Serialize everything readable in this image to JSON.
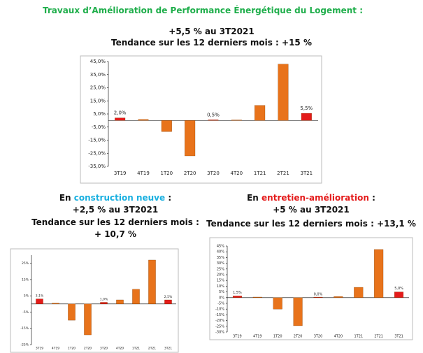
{
  "header": {
    "title": "Travaux d’Amélioration de Performance Énergétique du Logement :",
    "line1": "+5,5 % au 3T2021",
    "line2": "Tendance sur les 12 derniers mois : +15 %"
  },
  "left": {
    "heading": [
      "En ",
      "construction neuve",
      " :"
    ],
    "lines": [
      "+2,5 % au 3T2021",
      "Tendance sur les 12 derniers mois :",
      "+ 10,7 %"
    ]
  },
  "right": {
    "heading": [
      "En ",
      "entretien-amélioration",
      " :"
    ],
    "lines": [
      "+5 % au 3T2021",
      "Tendance sur les 12 derniers mois : +13,1 %"
    ]
  },
  "chart_data": [
    {
      "type": "bar",
      "categories": [
        "3T19",
        "4T19",
        "1T20",
        "2T20",
        "3T20",
        "4T20",
        "1T21",
        "2T21",
        "3T21"
      ],
      "values": [
        2.0,
        0.8,
        -8.5,
        -27,
        0.5,
        0.3,
        11.5,
        43,
        5.5
      ],
      "value_labels": [
        "2,0%",
        null,
        null,
        null,
        "0,5%",
        null,
        null,
        null,
        "5,5%"
      ],
      "colors": [
        "#e41b1b",
        "#e8731b",
        "#e8731b",
        "#e8731b",
        "#e41b1b",
        "#e8731b",
        "#e8731b",
        "#e8731b",
        "#e41b1b"
      ],
      "ylim": [
        -35,
        45
      ],
      "grid": false,
      "yticks": [
        {
          "value": 45,
          "label": "45,0%"
        },
        {
          "value": 35,
          "label": "35,0%"
        },
        {
          "value": 25,
          "label": "25,0%"
        },
        {
          "value": 15,
          "label": "15,0%"
        },
        {
          "value": 5,
          "label": "5,0%"
        },
        {
          "value": -5,
          "label": "-5,0%"
        },
        {
          "value": -15,
          "label": "-15,0%"
        },
        {
          "value": -25,
          "label": "-25,0%"
        },
        {
          "value": -35,
          "label": "-35,0%"
        }
      ]
    },
    {
      "type": "bar",
      "categories": [
        "3T19",
        "4T19",
        "1T20",
        "2T20",
        "3T20",
        "4T20",
        "1T21",
        "2T21",
        "3T21"
      ],
      "values": [
        3.1,
        0.5,
        -10,
        -19,
        1.0,
        2.5,
        9,
        27,
        2.5
      ],
      "value_labels": [
        "3,1%",
        null,
        null,
        null,
        "1,0%",
        null,
        null,
        null,
        "2,5%"
      ],
      "colors": [
        "#e41b1b",
        "#e8731b",
        "#e8731b",
        "#e8731b",
        "#e41b1b",
        "#e8731b",
        "#e8731b",
        "#e8731b",
        "#e41b1b"
      ],
      "ylim": [
        -25,
        30
      ],
      "grid": false,
      "yticks": [
        {
          "value": 25,
          "label": "25%"
        },
        {
          "value": 15,
          "label": "15%"
        },
        {
          "value": 5,
          "label": "5%"
        },
        {
          "value": -5,
          "label": "-5%"
        },
        {
          "value": -15,
          "label": "-15%"
        },
        {
          "value": -25,
          "label": "-25%"
        }
      ]
    },
    {
      "type": "bar",
      "categories": [
        "3T19",
        "4T19",
        "1T20",
        "2T20",
        "3T20",
        "4T20",
        "1T21",
        "2T21",
        "3T21"
      ],
      "values": [
        1.5,
        0.5,
        -10,
        -24.5,
        0.0,
        1.0,
        9,
        42,
        5.0
      ],
      "value_labels": [
        "1,5%",
        null,
        null,
        null,
        "0,0%",
        null,
        null,
        null,
        "5,0%"
      ],
      "colors": [
        "#e41b1b",
        "#e8731b",
        "#e8731b",
        "#e8731b",
        "#e41b1b",
        "#e8731b",
        "#e8731b",
        "#e8731b",
        "#e41b1b"
      ],
      "ylim": [
        -30,
        45
      ],
      "grid": false,
      "yticks": [
        {
          "value": 45,
          "label": "45%"
        },
        {
          "value": 40,
          "label": "40%"
        },
        {
          "value": 35,
          "label": "35%"
        },
        {
          "value": 30,
          "label": "30%"
        },
        {
          "value": 25,
          "label": "25%"
        },
        {
          "value": 20,
          "label": "20%"
        },
        {
          "value": 15,
          "label": "15%"
        },
        {
          "value": 10,
          "label": "10%"
        },
        {
          "value": 5,
          "label": "5%"
        },
        {
          "value": 0,
          "label": "0%"
        },
        {
          "value": -5,
          "label": "-5%"
        },
        {
          "value": -10,
          "label": "-10%"
        },
        {
          "value": -15,
          "label": "-15%"
        },
        {
          "value": -20,
          "label": "-20%"
        },
        {
          "value": -25,
          "label": "-25%"
        },
        {
          "value": -30,
          "label": "-30%"
        }
      ]
    }
  ]
}
